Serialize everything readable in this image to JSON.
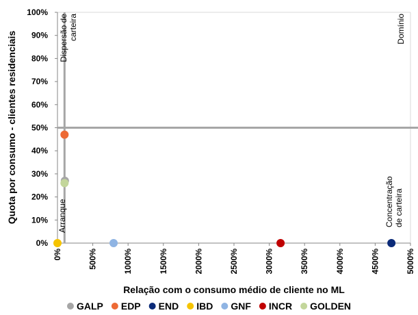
{
  "chart_data": {
    "type": "scatter",
    "x_label": "Relação com o consumo médio de cliente no ML",
    "y_label": "Quota por consumo - clientes residenciais",
    "xlim": [
      0,
      5000
    ],
    "xticks": [
      {
        "value": 0,
        "label": "0%"
      },
      {
        "value": 500,
        "label": "500%"
      },
      {
        "value": 1000,
        "label": "1000%"
      },
      {
        "value": 1500,
        "label": "1500%"
      },
      {
        "value": 2000,
        "label": "2000%"
      },
      {
        "value": 2500,
        "label": "2500%"
      },
      {
        "value": 3000,
        "label": "3000%"
      },
      {
        "value": 3500,
        "label": "3500%"
      },
      {
        "value": 4000,
        "label": "4000%"
      },
      {
        "value": 4500,
        "label": "4500%"
      },
      {
        "value": 5000,
        "label": "5000%"
      }
    ],
    "ylim": [
      0,
      100
    ],
    "yticks": [
      {
        "value": 0,
        "label": "0%"
      },
      {
        "value": 10,
        "label": "10%"
      },
      {
        "value": 20,
        "label": "20%"
      },
      {
        "value": 30,
        "label": "30%"
      },
      {
        "value": 40,
        "label": "40%"
      },
      {
        "value": 50,
        "label": "50%"
      },
      {
        "value": 60,
        "label": "60%"
      },
      {
        "value": 70,
        "label": "70%"
      },
      {
        "value": 80,
        "label": "80%"
      },
      {
        "value": 90,
        "label": "90%"
      },
      {
        "value": 100,
        "label": "100%"
      }
    ],
    "reference_lines": {
      "x": 100,
      "y": 50
    },
    "annotations": [
      {
        "lines": [
          "Dispersão de",
          "carteira"
        ]
      },
      {
        "lines": [
          "Domínio"
        ]
      },
      {
        "lines": [
          "Arranque"
        ]
      },
      {
        "lines": [
          "Concentração",
          "de carteira"
        ]
      }
    ],
    "series": [
      {
        "name": "GALP",
        "color": "#a6a6a6",
        "x": [
          105
        ],
        "values": [
          27
        ]
      },
      {
        "name": "EDP",
        "color": "#ed6a35",
        "x": [
          100
        ],
        "values": [
          47
        ]
      },
      {
        "name": "END",
        "color": "#0b2a78",
        "x": [
          4730
        ],
        "values": [
          0
        ]
      },
      {
        "name": "IBD",
        "color": "#f6c400",
        "x": [
          0
        ],
        "values": [
          0
        ]
      },
      {
        "name": "GNF",
        "color": "#8fb4e3",
        "x": [
          795
        ],
        "values": [
          0
        ]
      },
      {
        "name": "INCR",
        "color": "#c00000",
        "x": [
          3160
        ],
        "values": [
          0
        ]
      },
      {
        "name": "GOLDEN",
        "color": "#c3d69b",
        "x": [
          100
        ],
        "values": [
          26
        ]
      }
    ]
  }
}
